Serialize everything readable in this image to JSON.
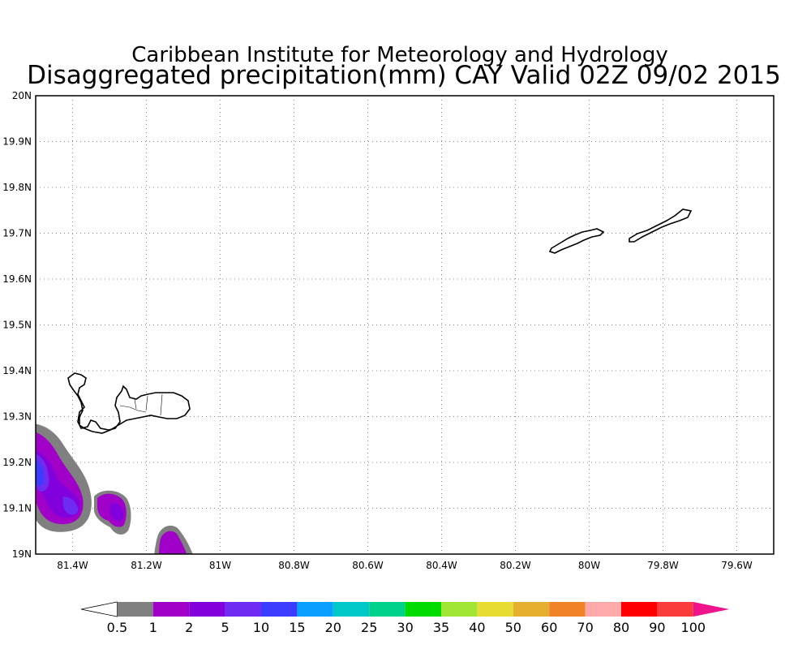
{
  "title": {
    "line1": "Caribbean Institute for Meteorology and Hydrology",
    "line2": "Disaggregated precipitation(mm) CAY Valid 02Z 09/02 2015"
  },
  "map": {
    "lat_range": [
      19.0,
      20.0
    ],
    "lon_range": [
      -81.5,
      -79.5
    ],
    "lat_ticks": [
      {
        "value": 20.0,
        "label": "20N"
      },
      {
        "value": 19.9,
        "label": "19.9N"
      },
      {
        "value": 19.8,
        "label": "19.8N"
      },
      {
        "value": 19.7,
        "label": "19.7N"
      },
      {
        "value": 19.6,
        "label": "19.6N"
      },
      {
        "value": 19.5,
        "label": "19.5N"
      },
      {
        "value": 19.4,
        "label": "19.4N"
      },
      {
        "value": 19.3,
        "label": "19.3N"
      },
      {
        "value": 19.2,
        "label": "19.2N"
      },
      {
        "value": 19.1,
        "label": "19.1N"
      },
      {
        "value": 19.0,
        "label": "19N"
      }
    ],
    "lon_ticks": [
      {
        "value": -81.4,
        "label": "81.4W"
      },
      {
        "value": -81.2,
        "label": "81.2W"
      },
      {
        "value": -81.0,
        "label": "81W"
      },
      {
        "value": -80.8,
        "label": "80.8W"
      },
      {
        "value": -80.6,
        "label": "80.6W"
      },
      {
        "value": -80.4,
        "label": "80.4W"
      },
      {
        "value": -80.2,
        "label": "80.2W"
      },
      {
        "value": -80.0,
        "label": "80W"
      },
      {
        "value": -79.8,
        "label": "79.8W"
      },
      {
        "value": -79.6,
        "label": "79.6W"
      }
    ],
    "grid": true
  },
  "colorbar": {
    "labels": [
      "0.5",
      "1",
      "2",
      "5",
      "10",
      "15",
      "20",
      "25",
      "30",
      "35",
      "40",
      "50",
      "60",
      "70",
      "80",
      "90",
      "100"
    ],
    "colors": [
      "#ffffff",
      "#808080",
      "#a000c8",
      "#8200dc",
      "#6e2cf0",
      "#3c3cff",
      "#0aa0ff",
      "#00c8c8",
      "#00d28c",
      "#00dc00",
      "#a0e632",
      "#e6dc32",
      "#e6af2d",
      "#f08228",
      "#ffaaaa",
      "#ff0000",
      "#fa3c3c",
      "#f0148c"
    ]
  },
  "colors": {
    "precip_low": "#808080",
    "precip_1": "#a000c8",
    "precip_2": "#8200dc",
    "precip_5": "#6e2cf0",
    "precip_10": "#3c3cff"
  }
}
